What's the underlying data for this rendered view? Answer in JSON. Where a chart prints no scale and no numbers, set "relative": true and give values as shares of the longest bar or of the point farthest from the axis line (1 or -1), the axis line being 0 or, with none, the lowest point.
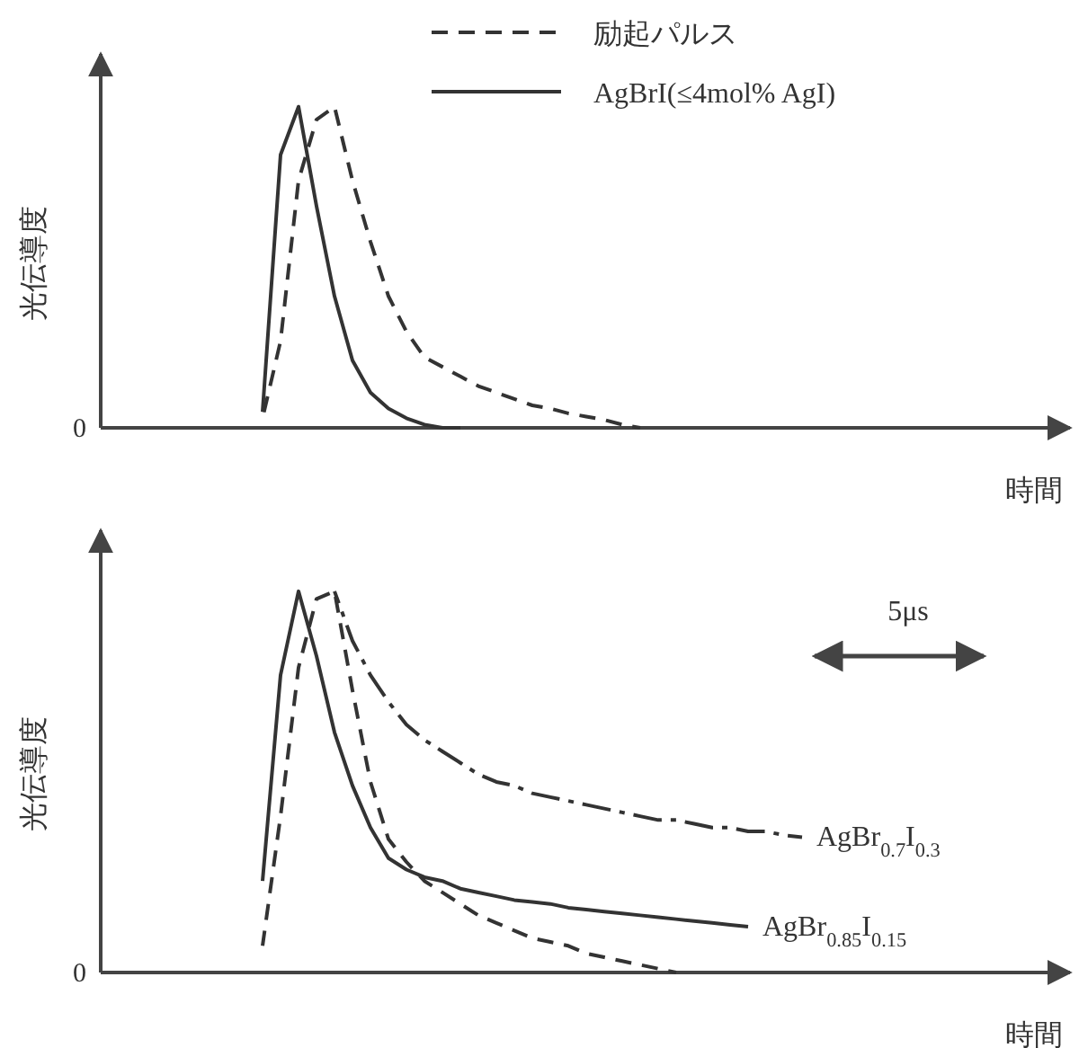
{
  "chart_data": [
    {
      "type": "line",
      "relative": true,
      "xlabel": "時間",
      "ylabel": "光伝導度",
      "annotations": [
        "0"
      ],
      "legend": "top",
      "categories": [
        null,
        null,
        null,
        null,
        null,
        null,
        null,
        null,
        null,
        null,
        null,
        null,
        null,
        null,
        null,
        null,
        null,
        null,
        null,
        null,
        null,
        null,
        null,
        null,
        null,
        null,
        null,
        null,
        null,
        null,
        null,
        null,
        null,
        null,
        null,
        null,
        null,
        null,
        null,
        null,
        null,
        null,
        null,
        null,
        null,
        null,
        null,
        null,
        null,
        null,
        null,
        null,
        null
      ],
      "series": [
        {
          "name": "励起パルス",
          "color": "#333333",
          "line_style": "dashed",
          "values": [
            null,
            null,
            null,
            null,
            null,
            null,
            null,
            null,
            null,
            0.03,
            0.27,
            0.77,
            0.96,
            1.0,
            0.77,
            0.58,
            0.41,
            0.3,
            0.22,
            0.19,
            0.16,
            0.13,
            0.11,
            0.09,
            0.07,
            0.06,
            0.045,
            0.035,
            0.025,
            0.01,
            0,
            null,
            null,
            null,
            null,
            null,
            null,
            null,
            null,
            null,
            null,
            null,
            null,
            null,
            null,
            null,
            null,
            null,
            null,
            null,
            null,
            null,
            null
          ]
        },
        {
          "name": "AgBrI(≤4mol% AgI)",
          "color": "#333333",
          "line_style": "solid",
          "values": [
            null,
            null,
            null,
            null,
            null,
            null,
            null,
            null,
            null,
            0.05,
            0.85,
            1.0,
            0.69,
            0.41,
            0.21,
            0.11,
            0.06,
            0.03,
            0.01,
            0,
            0,
            null,
            null,
            null,
            null,
            null,
            null,
            null,
            null,
            null,
            null,
            null,
            null,
            null,
            null,
            null,
            null,
            null,
            null,
            null,
            null,
            null,
            null,
            null,
            null,
            null,
            null,
            null,
            null,
            null,
            null,
            null,
            null
          ]
        }
      ]
    },
    {
      "type": "line",
      "relative": true,
      "xlabel": "時間",
      "ylabel": "光伝導度",
      "annotations": [
        "0",
        "5μs"
      ],
      "categories": [
        null,
        null,
        null,
        null,
        null,
        null,
        null,
        null,
        null,
        null,
        null,
        null,
        null,
        null,
        null,
        null,
        null,
        null,
        null,
        null,
        null,
        null,
        null,
        null,
        null,
        null,
        null,
        null,
        null,
        null,
        null,
        null,
        null,
        null,
        null,
        null,
        null,
        null,
        null,
        null,
        null,
        null,
        null,
        null,
        null,
        null,
        null,
        null,
        null,
        null,
        null,
        null,
        null
      ],
      "series": [
        {
          "color": "#333333",
          "line_style": "dashed",
          "values": [
            null,
            null,
            null,
            null,
            null,
            null,
            null,
            null,
            null,
            0.07,
            0.41,
            0.8,
            0.98,
            1.0,
            0.74,
            0.5,
            0.35,
            0.29,
            0.24,
            0.21,
            0.18,
            0.15,
            0.13,
            0.11,
            0.09,
            0.08,
            0.07,
            0.05,
            0.04,
            0.03,
            0.02,
            0.01,
            0,
            null,
            null,
            null,
            null,
            null,
            null,
            null,
            null,
            null,
            null,
            null,
            null,
            null,
            null,
            null,
            null,
            null,
            null,
            null,
            null
          ]
        },
        {
          "name": "AgBr$_{0.7}$I$_{0.3}$",
          "color": "#333333",
          "line_style": "dashdot",
          "values": [
            null,
            null,
            null,
            null,
            null,
            null,
            null,
            null,
            null,
            null,
            null,
            null,
            null,
            1.0,
            0.87,
            0.78,
            0.71,
            0.65,
            0.61,
            0.58,
            0.55,
            0.52,
            0.5,
            0.49,
            0.47,
            0.46,
            0.45,
            0.44,
            0.43,
            0.42,
            0.41,
            0.4,
            0.4,
            0.39,
            0.38,
            0.38,
            0.37,
            0.37,
            0.36,
            0.355,
            null,
            null,
            null,
            null,
            null,
            null,
            null,
            null,
            null,
            null,
            null,
            null,
            null
          ]
        },
        {
          "name": "AgBr$_{0.85}$I$_{0.15}$",
          "color": "#333333",
          "line_style": "solid",
          "values": [
            null,
            null,
            null,
            null,
            null,
            null,
            null,
            null,
            null,
            0.24,
            0.78,
            1.0,
            0.83,
            0.63,
            0.49,
            0.38,
            0.3,
            0.27,
            0.25,
            0.24,
            0.22,
            0.21,
            0.2,
            0.19,
            0.185,
            0.18,
            0.17,
            0.165,
            0.16,
            0.155,
            0.15,
            0.145,
            0.14,
            0.135,
            0.13,
            0.125,
            0.12,
            null,
            null,
            null,
            null,
            null,
            null,
            null,
            null,
            null,
            null,
            null,
            null,
            null,
            null,
            null,
            null
          ]
        }
      ]
    }
  ]
}
